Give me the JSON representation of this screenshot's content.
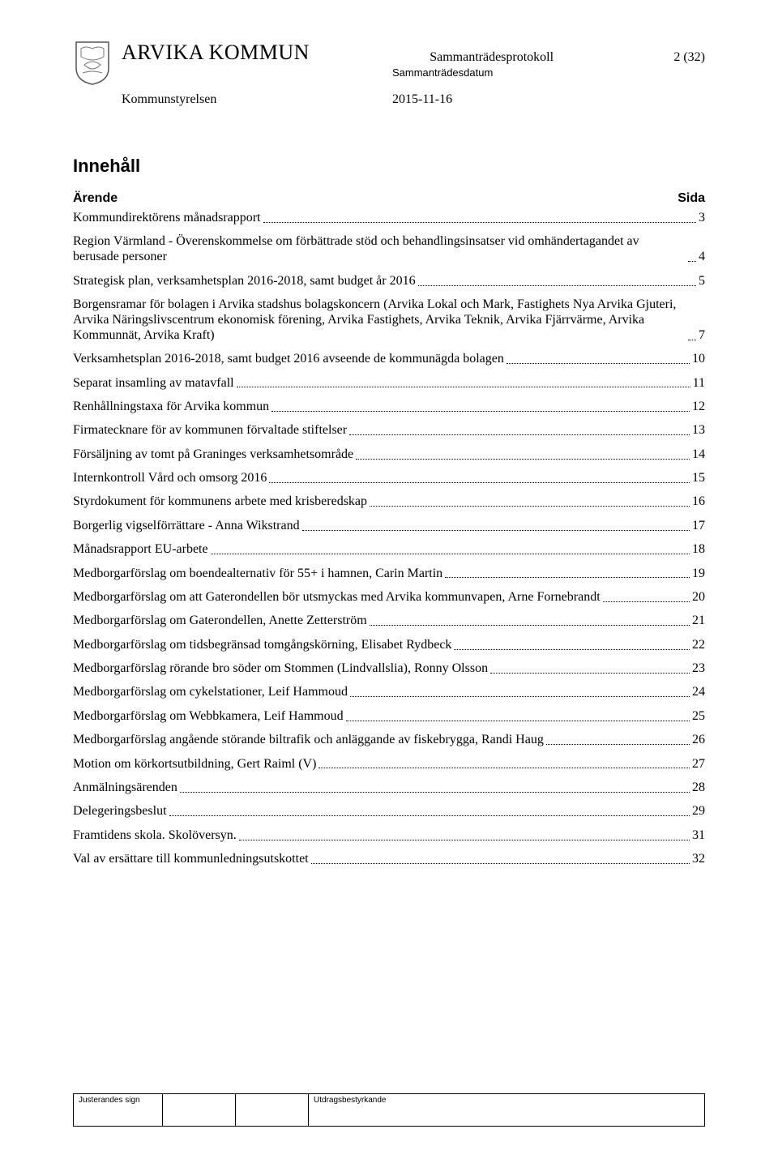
{
  "header": {
    "org_name": "ARVIKA KOMMUN",
    "protocol_label": "Sammanträdesprotokoll",
    "page_indicator": "2 (32)",
    "date_label": "Sammanträdesdatum",
    "committee": "Kommunstyrelsen",
    "date": "2015-11-16"
  },
  "section_title": "Innehåll",
  "toc_header": {
    "left": "Ärende",
    "right": "Sida"
  },
  "toc": [
    {
      "label": "Kommundirektörens månadsrapport",
      "page": "3"
    },
    {
      "label": "Region Värmland - Överenskommelse om förbättrade stöd och behandlingsinsatser vid omhändertagandet av berusade personer",
      "page": "4"
    },
    {
      "label": "Strategisk plan, verksamhetsplan 2016-2018, samt budget år 2016",
      "page": "5"
    },
    {
      "label": "Borgensramar för bolagen i Arvika stadshus bolagskoncern (Arvika Lokal och Mark, Fastighets Nya Arvika Gjuteri, Arvika Näringslivscentrum ekonomisk förening, Arvika Fastighets, Arvika Teknik, Arvika Fjärrvärme, Arvika Kommunnät, Arvika Kraft)",
      "page": "7"
    },
    {
      "label": "Verksamhetsplan 2016-2018, samt budget 2016 avseende de kommunägda bolagen",
      "page": "10"
    },
    {
      "label": "Separat insamling av matavfall",
      "page": "11"
    },
    {
      "label": "Renhållningstaxa för Arvika kommun",
      "page": "12"
    },
    {
      "label": "Firmatecknare för av kommunen förvaltade stiftelser",
      "page": "13"
    },
    {
      "label": "Försäljning av tomt på Graninges verksamhetsområde",
      "page": "14"
    },
    {
      "label": "Internkontroll Vård och omsorg 2016",
      "page": "15"
    },
    {
      "label": "Styrdokument för kommunens arbete med krisberedskap",
      "page": "16"
    },
    {
      "label": "Borgerlig vigselförrättare - Anna Wikstrand",
      "page": "17"
    },
    {
      "label": "Månadsrapport EU-arbete",
      "page": "18"
    },
    {
      "label": "Medborgarförslag om boendealternativ för 55+ i hamnen, Carin Martin",
      "page": "19"
    },
    {
      "label": "Medborgarförslag om att Gaterondellen bör utsmyckas med Arvika kommunvapen, Arne Fornebrandt",
      "page": "20"
    },
    {
      "label": "Medborgarförslag om Gaterondellen, Anette Zetterström",
      "page": "21"
    },
    {
      "label": "Medborgarförslag om tidsbegränsad tomgångskörning, Elisabet Rydbeck",
      "page": "22"
    },
    {
      "label": "Medborgarförslag rörande bro söder om Stommen (Lindvallslia), Ronny Olsson",
      "page": "23"
    },
    {
      "label": "Medborgarförslag om cykelstationer, Leif Hammoud",
      "page": "24"
    },
    {
      "label": "Medborgarförslag om Webbkamera, Leif Hammoud",
      "page": "25"
    },
    {
      "label": "Medborgarförslag angående störande biltrafik och anläggande av fiskebrygga, Randi Haug",
      "page": "26"
    },
    {
      "label": "Motion om körkortsutbildning, Gert Raiml (V)",
      "page": "27"
    },
    {
      "label": "Anmälningsärenden",
      "page": "28"
    },
    {
      "label": "Delegeringsbeslut",
      "page": "29"
    },
    {
      "label": "Framtidens skola. Skolöversyn.",
      "page": "31"
    },
    {
      "label": "Val av ersättare till kommunledningsutskottet",
      "page": "32"
    }
  ],
  "footer": {
    "sign_label": "Justerandes sign",
    "attest_label": "Utdragsbestyrkande"
  }
}
